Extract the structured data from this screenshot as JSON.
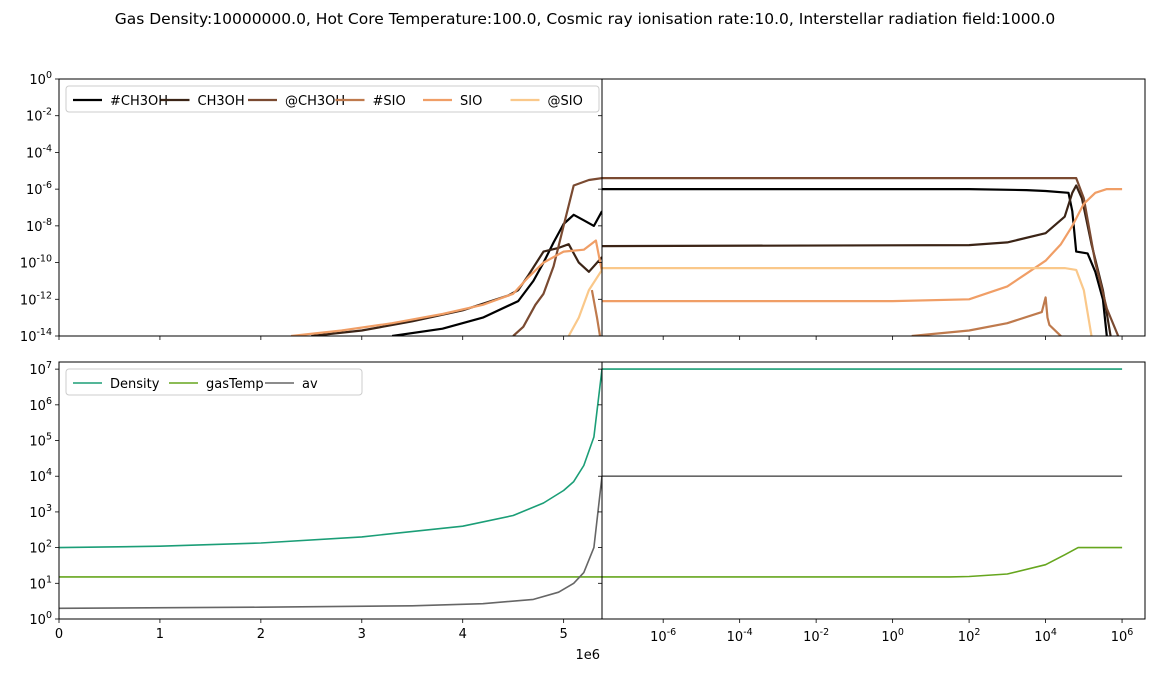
{
  "title": "Gas Density:10000000.0, Hot Core Temperature:100.0, Cosmic ray ionisation rate:10.0, Interstellar radiation field:1000.0",
  "chart_data": [
    {
      "id": "abundance-linear",
      "type": "line",
      "xscale": "linear",
      "yscale": "log",
      "xlim": [
        0,
        5380000
      ],
      "ylim": [
        -14,
        0
      ],
      "ytick_labels": [
        "10^0",
        "10^-2",
        "10^-4",
        "10^-6",
        "10^-8",
        "10^-10",
        "10^-12",
        "10^-14"
      ],
      "legend": "upper-left",
      "series": [
        {
          "name": "#CH3OH",
          "color": "#000000",
          "points": [
            [
              3300000,
              -14
            ],
            [
              3800000,
              -13.6
            ],
            [
              4200000,
              -13.0
            ],
            [
              4550000,
              -12.1
            ],
            [
              4700000,
              -11.0
            ],
            [
              4800000,
              -10.0
            ],
            [
              4900000,
              -8.9
            ],
            [
              5000000,
              -7.9
            ],
            [
              5100000,
              -7.4
            ],
            [
              5200000,
              -7.7
            ],
            [
              5300000,
              -8.0
            ],
            [
              5380000,
              -7.2
            ]
          ]
        },
        {
          "name": "CH3OH",
          "color": "#3b2416",
          "points": [
            [
              2500000,
              -14
            ],
            [
              3000000,
              -13.7
            ],
            [
              3500000,
              -13.2
            ],
            [
              4000000,
              -12.6
            ],
            [
              4450000,
              -11.8
            ],
            [
              4550000,
              -11.5
            ],
            [
              4650000,
              -10.7
            ],
            [
              4800000,
              -9.4
            ],
            [
              4950000,
              -9.2
            ],
            [
              5050000,
              -9.0
            ],
            [
              5150000,
              -10.0
            ],
            [
              5250000,
              -10.5
            ],
            [
              5380000,
              -9.7
            ]
          ]
        },
        {
          "name": "@CH3OH",
          "color": "#7a4a31",
          "points": [
            [
              4500000,
              -14
            ],
            [
              4600000,
              -13.5
            ],
            [
              4720000,
              -12.3
            ],
            [
              4800000,
              -11.7
            ],
            [
              4900000,
              -10.2
            ],
            [
              5000000,
              -8.0
            ],
            [
              5100000,
              -5.8
            ],
            [
              5250000,
              -5.5
            ],
            [
              5380000,
              -5.4
            ]
          ]
        },
        {
          "name": "#SIO",
          "color": "#bf7a4d",
          "points": [
            [
              5280000,
              -11.5
            ],
            [
              5330000,
              -13.0
            ],
            [
              5360000,
              -14.0
            ]
          ]
        },
        {
          "name": "SIO",
          "color": "#f09e66",
          "points": [
            [
              2300000,
              -14
            ],
            [
              2800000,
              -13.7
            ],
            [
              3300000,
              -13.3
            ],
            [
              3800000,
              -12.8
            ],
            [
              4200000,
              -12.3
            ],
            [
              4500000,
              -11.7
            ],
            [
              4650000,
              -10.8
            ],
            [
              4800000,
              -10.0
            ],
            [
              5000000,
              -9.4
            ],
            [
              5200000,
              -9.3
            ],
            [
              5320000,
              -8.8
            ],
            [
              5380000,
              -10.5
            ]
          ]
        },
        {
          "name": "@SIO",
          "color": "#fac88a",
          "points": [
            [
              5050000,
              -14
            ],
            [
              5150000,
              -13.0
            ],
            [
              5250000,
              -11.5
            ],
            [
              5380000,
              -10.4
            ]
          ]
        }
      ]
    },
    {
      "id": "abundance-log",
      "type": "line",
      "xscale": "log",
      "yscale": "log",
      "xlim": [
        -7.6,
        6.6
      ],
      "ylim": [
        -14,
        0
      ],
      "series": [
        {
          "name": "#CH3OH",
          "color": "#000000",
          "points": [
            [
              -7.6,
              -6.0
            ],
            [
              2,
              -6.0
            ],
            [
              3.5,
              -6.05
            ],
            [
              4,
              -6.1
            ],
            [
              4.6,
              -6.2
            ],
            [
              4.7,
              -7.2
            ],
            [
              4.8,
              -9.4
            ],
            [
              5.1,
              -9.5
            ],
            [
              5.3,
              -10.5
            ],
            [
              5.5,
              -12.0
            ],
            [
              5.6,
              -14.0
            ]
          ]
        },
        {
          "name": "CH3OH",
          "color": "#3b2416",
          "points": [
            [
              -7.6,
              -9.1
            ],
            [
              2,
              -9.05
            ],
            [
              3,
              -8.9
            ],
            [
              4,
              -8.4
            ],
            [
              4.5,
              -7.5
            ],
            [
              4.7,
              -6.2
            ],
            [
              4.8,
              -5.8
            ],
            [
              4.95,
              -6.5
            ],
            [
              5.2,
              -9.0
            ],
            [
              5.5,
              -11.5
            ],
            [
              5.7,
              -14.0
            ]
          ]
        },
        {
          "name": "@CH3OH",
          "color": "#7a4a31",
          "points": [
            [
              -7.6,
              -5.4
            ],
            [
              4.8,
              -5.4
            ],
            [
              5.0,
              -6.5
            ],
            [
              5.3,
              -10.0
            ],
            [
              5.6,
              -12.5
            ],
            [
              5.9,
              -14.0
            ]
          ]
        },
        {
          "name": "#SIO",
          "color": "#bf7a4d",
          "points": [
            [
              0.5,
              -14.0
            ],
            [
              2,
              -13.7
            ],
            [
              3,
              -13.3
            ],
            [
              3.9,
              -12.7
            ],
            [
              4.0,
              -11.9
            ],
            [
              4.05,
              -13.0
            ],
            [
              4.1,
              -13.4
            ],
            [
              4.3,
              -13.8
            ],
            [
              4.4,
              -14.0
            ]
          ]
        },
        {
          "name": "SIO",
          "color": "#f09e66",
          "points": [
            [
              -7.6,
              -12.1
            ],
            [
              -4,
              -12.1
            ],
            [
              0,
              -12.1
            ],
            [
              2,
              -12.0
            ],
            [
              3,
              -11.3
            ],
            [
              3.5,
              -10.6
            ],
            [
              4,
              -9.9
            ],
            [
              4.4,
              -9.0
            ],
            [
              4.7,
              -8.0
            ],
            [
              5.0,
              -6.8
            ],
            [
              5.3,
              -6.2
            ],
            [
              5.6,
              -6.0
            ],
            [
              6.0,
              -6.0
            ]
          ]
        },
        {
          "name": "@SIO",
          "color": "#fac88a",
          "points": [
            [
              -7.6,
              -10.3
            ],
            [
              4.5,
              -10.3
            ],
            [
              4.8,
              -10.4
            ],
            [
              5.0,
              -11.5
            ],
            [
              5.2,
              -14.0
            ]
          ]
        }
      ]
    },
    {
      "id": "physical-linear",
      "type": "line",
      "xscale": "linear",
      "yscale": "log",
      "xlim": [
        0,
        5380000
      ],
      "ylim": [
        0,
        7.2
      ],
      "xticks": [
        0,
        1000000,
        2000000,
        3000000,
        4000000,
        5000000
      ],
      "xtick_labels": [
        "0",
        "1",
        "2",
        "3",
        "4",
        "5"
      ],
      "x_offset_label": "1e6",
      "ytick_labels": [
        "10^7",
        "10^6",
        "10^5",
        "10^4",
        "10^3",
        "10^2",
        "10^1",
        "10^0"
      ],
      "legend": "upper-left",
      "series": [
        {
          "name": "Density",
          "color": "#1b9e77",
          "points": [
            [
              0,
              2.0
            ],
            [
              1000000,
              2.04
            ],
            [
              2000000,
              2.13
            ],
            [
              3000000,
              2.3
            ],
            [
              4000000,
              2.6
            ],
            [
              4500000,
              2.9
            ],
            [
              4800000,
              3.25
            ],
            [
              5000000,
              3.6
            ],
            [
              5100000,
              3.85
            ],
            [
              5200000,
              4.3
            ],
            [
              5300000,
              5.1
            ],
            [
              5380000,
              7.0
            ]
          ]
        },
        {
          "name": "gasTemp",
          "color": "#66a61e",
          "points": [
            [
              0,
              1.18
            ],
            [
              5380000,
              1.18
            ]
          ]
        },
        {
          "name": "av",
          "color": "#666666",
          "points": [
            [
              0,
              0.3
            ],
            [
              2000000,
              0.33
            ],
            [
              3500000,
              0.37
            ],
            [
              4200000,
              0.43
            ],
            [
              4700000,
              0.55
            ],
            [
              4950000,
              0.75
            ],
            [
              5100000,
              1.0
            ],
            [
              5200000,
              1.3
            ],
            [
              5300000,
              2.0
            ],
            [
              5380000,
              4.0
            ]
          ]
        }
      ]
    },
    {
      "id": "physical-log",
      "type": "line",
      "xscale": "log",
      "yscale": "log",
      "xlim": [
        -7.6,
        6.6
      ],
      "ylim": [
        0,
        7.2
      ],
      "xticks": [
        -6,
        -4,
        -2,
        0,
        2,
        4,
        6
      ],
      "xtick_labels": [
        "10^-6",
        "10^-4",
        "10^-2",
        "10^0",
        "10^2",
        "10^4",
        "10^6"
      ],
      "series": [
        {
          "name": "Density",
          "color": "#1b9e77",
          "points": [
            [
              -7.6,
              7.0
            ],
            [
              6,
              7.0
            ]
          ]
        },
        {
          "name": "gasTemp",
          "color": "#66a61e",
          "points": [
            [
              -7.6,
              1.18
            ],
            [
              1.5,
              1.18
            ],
            [
              2,
              1.19
            ],
            [
              3,
              1.26
            ],
            [
              4,
              1.52
            ],
            [
              4.5,
              1.8
            ],
            [
              4.85,
              2.0
            ],
            [
              6,
              2.0
            ]
          ]
        },
        {
          "name": "av",
          "color": "#666666",
          "points": [
            [
              -7.6,
              4.0
            ],
            [
              6,
              4.0
            ]
          ]
        }
      ]
    }
  ]
}
